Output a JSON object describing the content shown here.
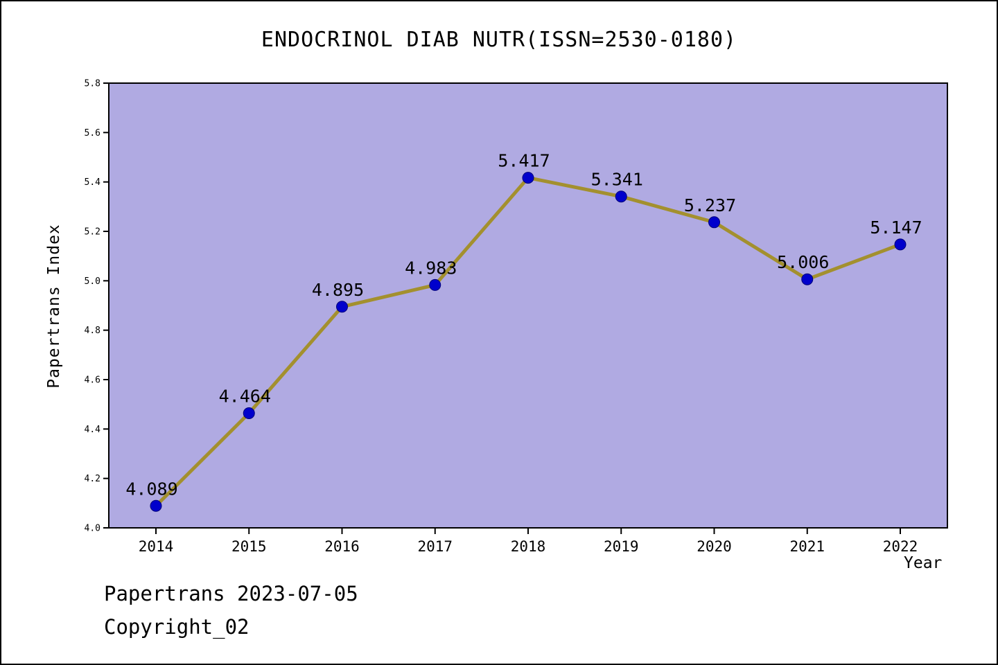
{
  "chart_data": {
    "type": "line",
    "title": "ENDOCRINOL DIAB NUTR(ISSN=2530-0180)",
    "xlabel": "Year",
    "ylabel": "Papertrans Index",
    "x": [
      2014,
      2015,
      2016,
      2017,
      2018,
      2019,
      2020,
      2021,
      2022
    ],
    "values": [
      4.089,
      4.464,
      4.895,
      4.983,
      5.417,
      5.341,
      5.237,
      5.006,
      5.147
    ],
    "value_labels": [
      "4.089",
      "4.464",
      "4.895",
      "4.983",
      "5.417",
      "5.341",
      "5.237",
      "5.006",
      "5.147"
    ],
    "ylim": [
      4.0,
      5.8
    ],
    "ytick_step": 0.2,
    "grid": false,
    "legend": "none",
    "colors": {
      "plot_background": "#b0aae2",
      "line": "#a3902e",
      "marker": "#0000cc",
      "marker_edge": "#00007a",
      "axis": "#000000",
      "text": "#000000"
    }
  },
  "footer": {
    "line1": "Papertrans 2023-07-05",
    "line2": "Copyright_02"
  }
}
